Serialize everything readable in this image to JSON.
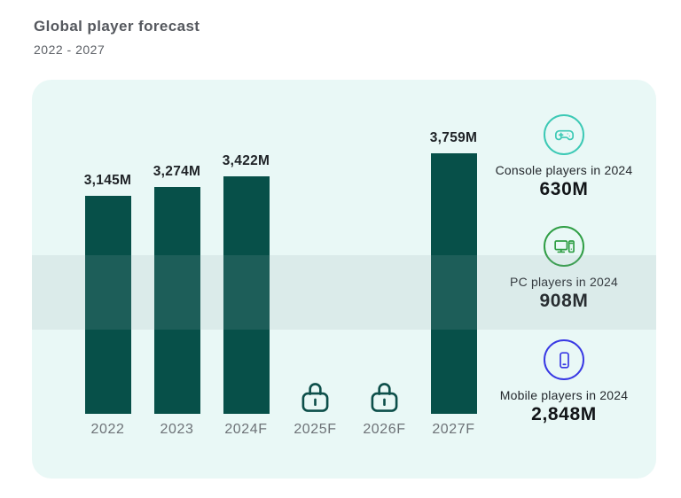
{
  "header": {
    "title": "Global player forecast",
    "subtitle": "2022 - 2027"
  },
  "chart_data": {
    "type": "bar",
    "title": "Global player forecast",
    "subtitle": "2022 - 2027",
    "unit": "M (millions of players)",
    "categories": [
      "2022",
      "2023",
      "2024F",
      "2025F",
      "2026F",
      "2027F"
    ],
    "values": [
      3145,
      3274,
      3422,
      null,
      null,
      3759
    ],
    "points": [
      {
        "category": "2022",
        "value": 3145,
        "label": "3,145M",
        "locked": false
      },
      {
        "category": "2023",
        "value": 3274,
        "label": "3,274M",
        "locked": false
      },
      {
        "category": "2024F",
        "value": 3422,
        "label": "3,422M",
        "locked": false
      },
      {
        "category": "2025F",
        "value": null,
        "label": "",
        "locked": true
      },
      {
        "category": "2026F",
        "value": null,
        "label": "",
        "locked": true
      },
      {
        "category": "2027F",
        "value": 3759,
        "label": "3,759M",
        "locked": false
      }
    ],
    "ylim": [
      0,
      3759
    ],
    "grid": false,
    "legend": "none",
    "bar_color": "#075049"
  },
  "stats": [
    {
      "icon": "gamepad-icon",
      "label": "Console players in 2024",
      "value": "630M",
      "color": "#3CC9B5"
    },
    {
      "icon": "desktop-pc-icon",
      "label": "PC players in 2024",
      "value": "908M",
      "color": "#2F9E44"
    },
    {
      "icon": "smartphone-icon",
      "label": "Mobile players in 2024",
      "value": "2,848M",
      "color": "#3939E4"
    }
  ],
  "colors": {
    "card_background": "#E9F8F6",
    "bar": "#075049",
    "lock": "#0D4F4A",
    "title_text": "#55585E",
    "axis_text": "#6D7277",
    "value_text": "#1E2226"
  }
}
